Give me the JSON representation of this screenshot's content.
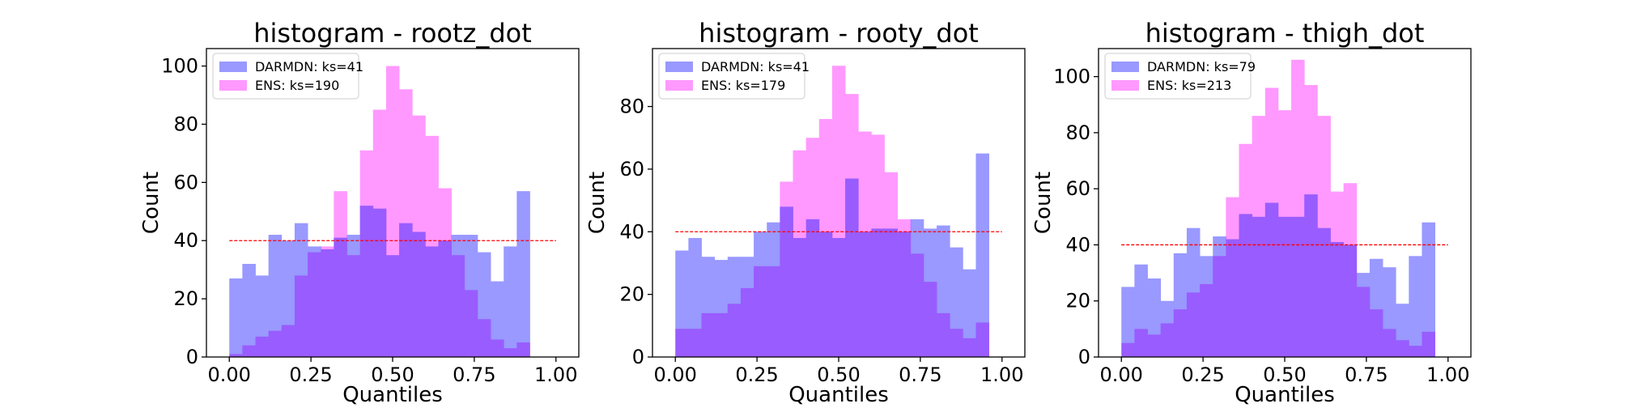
{
  "chart_data": [
    {
      "type": "histogram",
      "title": "histogram - rootz_dot",
      "xlabel": "Quantiles",
      "ylabel": "Count",
      "xlim": [
        -0.07,
        1.07
      ],
      "ylim": [
        0,
        106
      ],
      "xticks": [
        0.0,
        0.25,
        0.5,
        0.75,
        1.0
      ],
      "xtick_labels": [
        "0.00",
        "0.25",
        "0.50",
        "0.75",
        "1.00"
      ],
      "yticks": [
        0,
        20,
        40,
        60,
        80,
        100
      ],
      "bin_width": 0.04,
      "bin_edges_start": 0.0,
      "reference_line": {
        "y": 40,
        "x_range": [
          0.0,
          1.0
        ],
        "color": "#ff0000",
        "style": "dashed"
      },
      "legend_position": "upper left",
      "series": [
        {
          "name": "DARMDN: ks=41",
          "color": "#9999ff",
          "values": [
            27,
            32,
            28,
            42,
            40,
            46,
            38,
            37,
            41,
            42,
            52,
            51,
            35,
            46,
            43,
            38,
            40,
            42,
            42,
            36,
            26,
            38,
            57
          ]
        },
        {
          "name": "ENS: ks=190",
          "color": "#ff99ff",
          "values": [
            1,
            4,
            7,
            9,
            11,
            28,
            36,
            38,
            57,
            35,
            71,
            85,
            100,
            92,
            83,
            76,
            58,
            35,
            23,
            13,
            6,
            3,
            5
          ]
        }
      ]
    },
    {
      "type": "histogram",
      "title": "histogram - rooty_dot",
      "xlabel": "Quantiles",
      "ylabel": "Count",
      "xlim": [
        -0.07,
        1.07
      ],
      "ylim": [
        0,
        98.5
      ],
      "xticks": [
        0.0,
        0.25,
        0.5,
        0.75,
        1.0
      ],
      "xtick_labels": [
        "0.00",
        "0.25",
        "0.50",
        "0.75",
        "1.00"
      ],
      "yticks": [
        0,
        20,
        40,
        60,
        80
      ],
      "bin_width": 0.04,
      "bin_edges_start": 0.0,
      "reference_line": {
        "y": 40,
        "x_range": [
          0.0,
          1.0
        ],
        "color": "#ff0000",
        "style": "dashed"
      },
      "legend_position": "upper left",
      "series": [
        {
          "name": "DARMDN: ks=41",
          "color": "#9999ff",
          "values": [
            34,
            38,
            32,
            31,
            32,
            32,
            40,
            43,
            48,
            38,
            44,
            40,
            38,
            57,
            40,
            41,
            41,
            40,
            44,
            41,
            42,
            35,
            28,
            65
          ]
        },
        {
          "name": "ENS: ks=179",
          "color": "#ff99ff",
          "values": [
            9,
            9,
            14,
            14,
            17,
            22,
            29,
            29,
            56,
            66,
            70,
            76,
            93,
            84,
            72,
            71,
            59,
            44,
            33,
            24,
            14,
            9,
            6,
            11
          ]
        }
      ]
    },
    {
      "type": "histogram",
      "title": "histogram - thigh_dot",
      "xlabel": "Quantiles",
      "ylabel": "Count",
      "xlim": [
        -0.07,
        1.07
      ],
      "ylim": [
        0,
        110
      ],
      "xticks": [
        0.0,
        0.25,
        0.5,
        0.75,
        1.0
      ],
      "xtick_labels": [
        "0.00",
        "0.25",
        "0.50",
        "0.75",
        "1.00"
      ],
      "yticks": [
        0,
        20,
        40,
        60,
        80,
        100
      ],
      "bin_width": 0.04,
      "bin_edges_start": 0.0,
      "reference_line": {
        "y": 40,
        "x_range": [
          0.0,
          1.0
        ],
        "color": "#ff0000",
        "style": "dashed"
      },
      "legend_position": "upper left",
      "series": [
        {
          "name": "DARMDN: ks=79",
          "color": "#9999ff",
          "values": [
            25,
            33,
            28,
            20,
            37,
            46,
            36,
            43,
            42,
            51,
            50,
            55,
            50,
            50,
            58,
            46,
            41,
            40,
            30,
            35,
            32,
            19,
            36,
            48
          ]
        },
        {
          "name": "ENS: ks=213",
          "color": "#ff99ff",
          "values": [
            5,
            10,
            8,
            12,
            17,
            23,
            26,
            36,
            57,
            76,
            86,
            96,
            88,
            106,
            97,
            86,
            59,
            62,
            25,
            17,
            10,
            6,
            4,
            9
          ]
        }
      ]
    }
  ]
}
